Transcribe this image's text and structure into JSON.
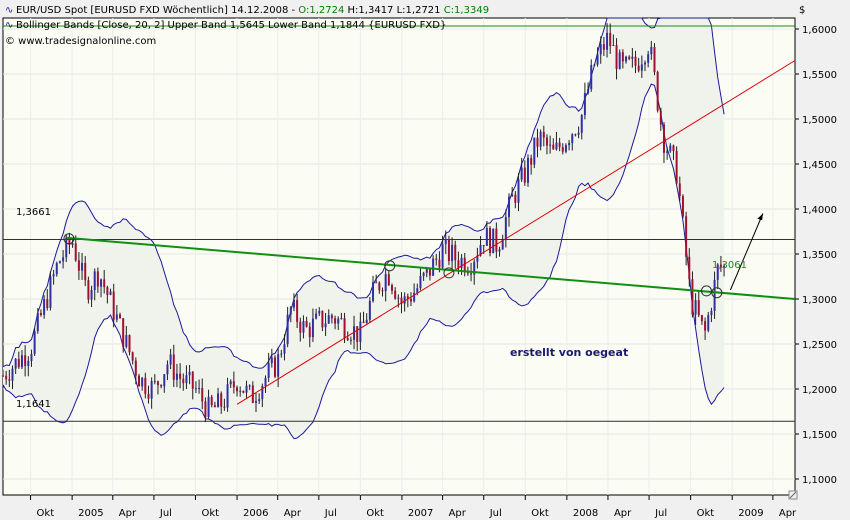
{
  "header": {
    "line1_prefix": "EUR/USD Spot [EURUSD FXD  Wöchentlich] 14.12.2008 - ",
    "ohlc": [
      {
        "text": "O:1,2724",
        "color": "#008000"
      },
      {
        "text": " H:1,3417",
        "color": "#000000"
      },
      {
        "text": " L:1,2721",
        "color": "#000000"
      },
      {
        "text": " C:1,3349",
        "color": "#008000"
      }
    ],
    "line2": "Bollinger Bands [Close, 20, 2] Upper Band 1,5645 Lower Band 1,1844 {EURUSD FXD}",
    "line3": "© www.tradesignalonline.com"
  },
  "annotations": {
    "watermark": "erstellt von oegeat",
    "level_high": "1,3661",
    "level_low": "1,1641",
    "last_value": "1,3061",
    "currency": "$"
  },
  "chart_data": {
    "type": "candlestick",
    "ylim": [
      1.06,
      1.63
    ],
    "y_ticks": [
      "1,1000",
      "1,1500",
      "1,2000",
      "1,2500",
      "1,3000",
      "1,3500",
      "1,4000",
      "1,4500",
      "1,5000",
      "1,5500",
      "1,6000"
    ],
    "y_tick_values": [
      1.1,
      1.15,
      1.2,
      1.25,
      1.3,
      1.35,
      1.4,
      1.45,
      1.5,
      1.55,
      1.6
    ],
    "x_ticks": [
      "Okt",
      "2005",
      "Apr",
      "Jul",
      "Okt",
      "2006",
      "Apr",
      "Jul",
      "Okt",
      "2007",
      "Apr",
      "Jul",
      "Okt",
      "2008",
      "Apr",
      "Jul",
      "Okt",
      "2009",
      "Apr"
    ],
    "x_tick_dates": [
      "2004-10",
      "2005-01",
      "2005-04",
      "2005-07",
      "2005-10",
      "2006-01",
      "2006-04",
      "2006-07",
      "2006-10",
      "2007-01",
      "2007-04",
      "2007-07",
      "2007-10",
      "2008-01",
      "2008-04",
      "2008-07",
      "2008-10",
      "2009-01",
      "2009-04"
    ],
    "close_keypoints": [
      [
        "2004-08",
        1.215
      ],
      [
        "2004-10",
        1.245
      ],
      [
        "2004-12",
        1.34
      ],
      [
        "2005-01",
        1.365
      ],
      [
        "2005-02",
        1.31
      ],
      [
        "2005-03",
        1.33
      ],
      [
        "2005-04",
        1.29
      ],
      [
        "2005-05",
        1.25
      ],
      [
        "2005-06",
        1.21
      ],
      [
        "2005-07",
        1.2
      ],
      [
        "2005-08",
        1.23
      ],
      [
        "2005-09",
        1.21
      ],
      [
        "2005-10",
        1.2
      ],
      [
        "2005-11",
        1.175
      ],
      [
        "2005-12",
        1.185
      ],
      [
        "2006-01",
        1.21
      ],
      [
        "2006-02",
        1.19
      ],
      [
        "2006-03",
        1.21
      ],
      [
        "2006-04",
        1.23
      ],
      [
        "2006-05",
        1.29
      ],
      [
        "2006-06",
        1.265
      ],
      [
        "2006-07",
        1.275
      ],
      [
        "2006-08",
        1.28
      ],
      [
        "2006-09",
        1.27
      ],
      [
        "2006-10",
        1.26
      ],
      [
        "2006-11",
        1.31
      ],
      [
        "2006-12",
        1.33
      ],
      [
        "2007-01",
        1.295
      ],
      [
        "2007-02",
        1.31
      ],
      [
        "2007-03",
        1.33
      ],
      [
        "2007-04",
        1.355
      ],
      [
        "2007-05",
        1.345
      ],
      [
        "2007-06",
        1.34
      ],
      [
        "2007-07",
        1.37
      ],
      [
        "2007-08",
        1.36
      ],
      [
        "2007-09",
        1.41
      ],
      [
        "2007-10",
        1.44
      ],
      [
        "2007-11",
        1.48
      ],
      [
        "2007-12",
        1.46
      ],
      [
        "2008-01",
        1.48
      ],
      [
        "2008-02",
        1.5
      ],
      [
        "2008-03",
        1.56
      ],
      [
        "2008-04",
        1.59
      ],
      [
        "2008-05",
        1.555
      ],
      [
        "2008-06",
        1.56
      ],
      [
        "2008-07",
        1.585
      ],
      [
        "2008-08",
        1.48
      ],
      [
        "2008-09",
        1.44
      ],
      [
        "2008-10",
        1.3
      ],
      [
        "2008-11",
        1.26
      ],
      [
        "2008-12",
        1.335
      ]
    ]
  }
}
